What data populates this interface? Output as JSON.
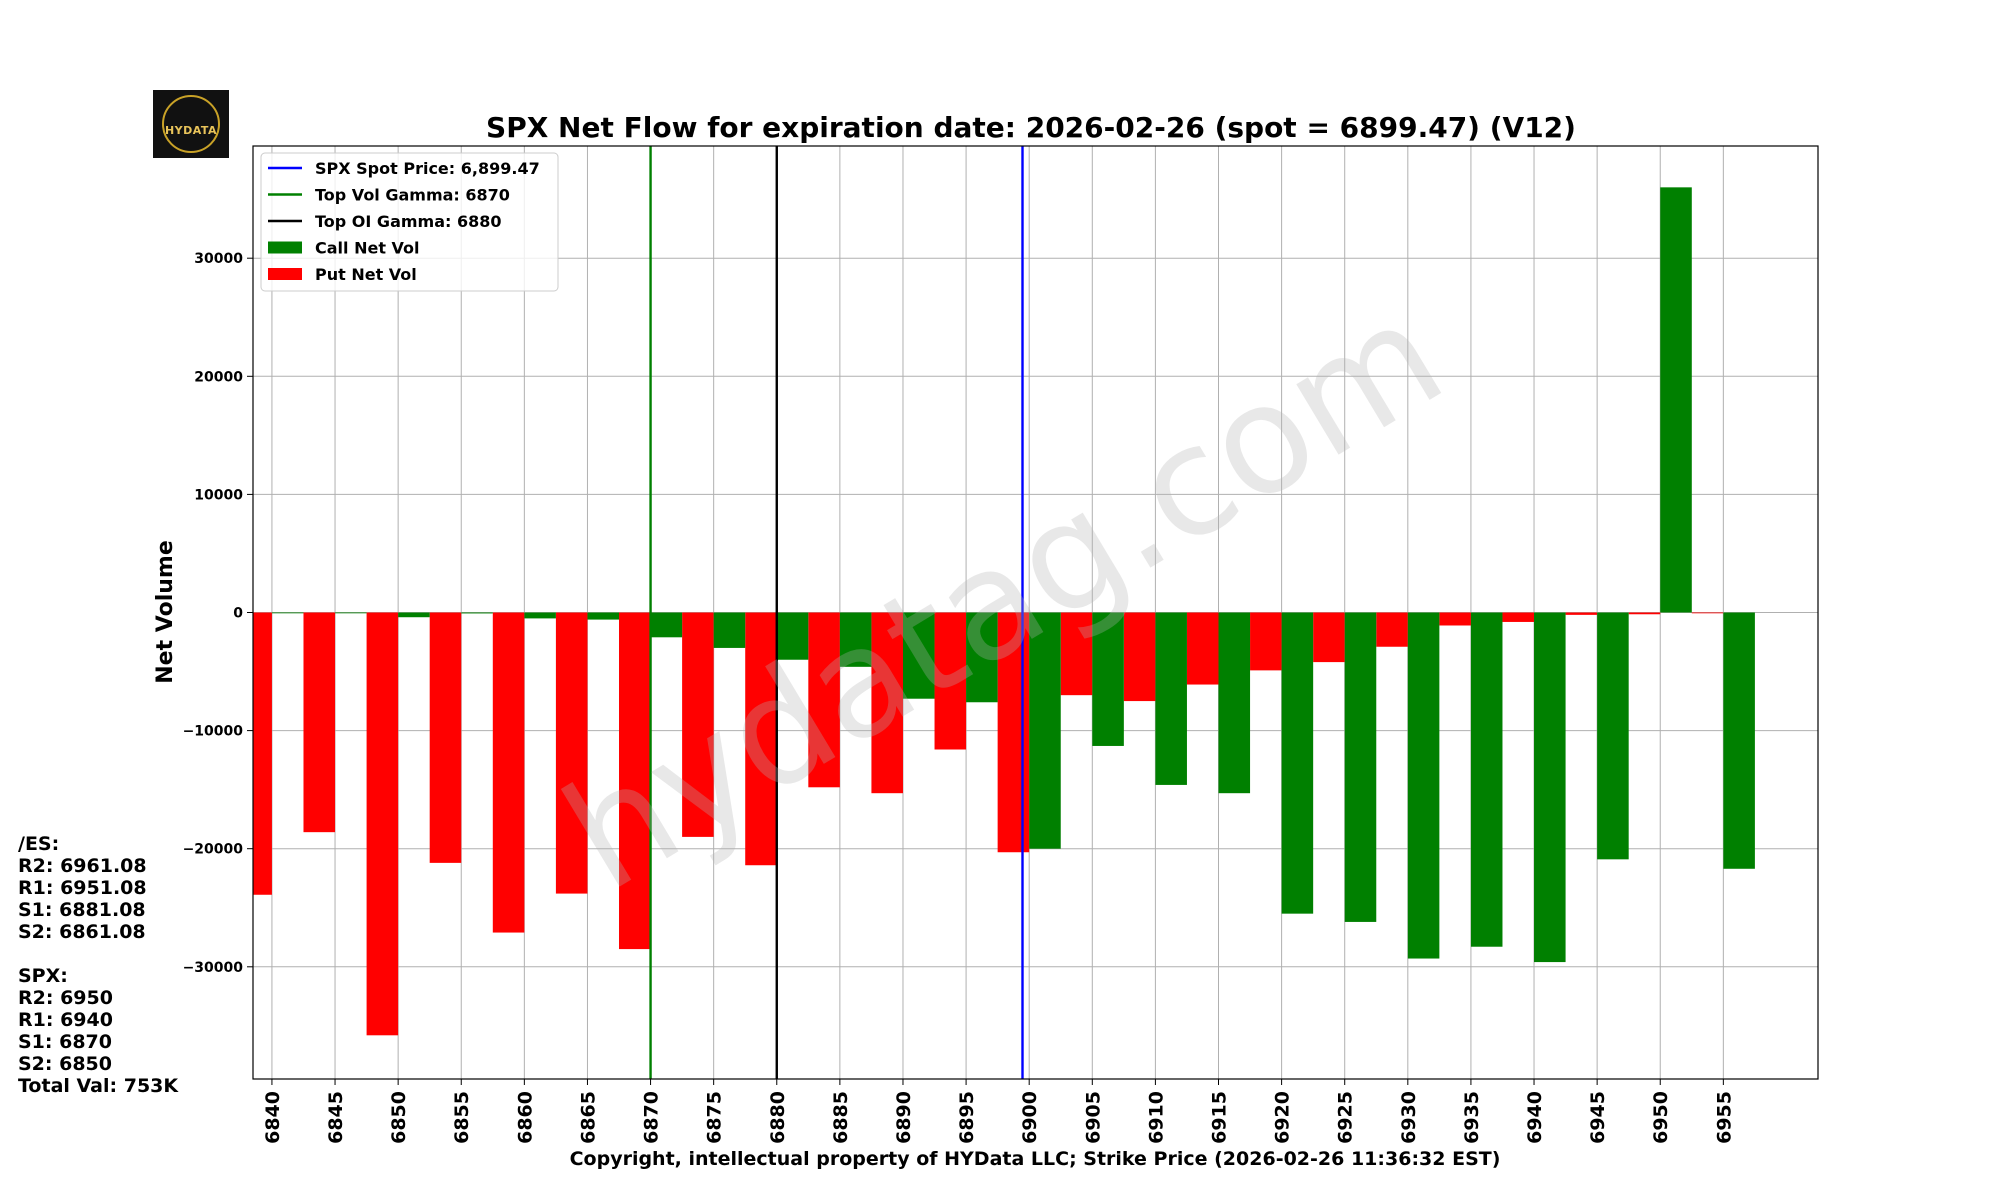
{
  "logo": {
    "text": "HYDATA"
  },
  "chart_data": {
    "type": "bar",
    "title": "SPX Net Flow for expiration date: 2026-02-26 (spot = 6899.47) (V12)",
    "xlabel": "Copyright, intellectual property of HYData LLC; Strike Price (2026-02-26 11:36:32 EST)",
    "ylabel": "Net Volume",
    "watermark": "hydatag.com",
    "xlim": [
      6838.5,
      6962.5
    ],
    "ylim": [
      -39500,
      39500
    ],
    "yticks": [
      -30000,
      -20000,
      -10000,
      0,
      10000,
      20000,
      30000
    ],
    "ytick_labels": [
      "−30000",
      "−20000",
      "−10000",
      "0",
      "10000",
      "20000",
      "30000"
    ],
    "categories": [
      "6840",
      "6845",
      "6850",
      "6855",
      "6860",
      "6865",
      "6870",
      "6875",
      "6880",
      "6885",
      "6890",
      "6895",
      "6900",
      "6905",
      "6910",
      "6915",
      "6920",
      "6925",
      "6930",
      "6935",
      "6940",
      "6945",
      "6950",
      "6955"
    ],
    "grid": true,
    "legend_position": "top-left",
    "series": [
      {
        "name": "Put Net Vol",
        "color": "#ff0000",
        "values": [
          -23900,
          -18600,
          -35800,
          -21200,
          -27100,
          -23800,
          -28500,
          -19000,
          -21400,
          -14800,
          -15300,
          -11600,
          -20300,
          -7000,
          -7500,
          -6100,
          -4900,
          -4200,
          -2900,
          -1100,
          -800,
          -200,
          -150,
          0
        ]
      },
      {
        "name": "Call Net Vol",
        "color": "#008000",
        "values": [
          -50,
          -30,
          -400,
          -80,
          -500,
          -600,
          -2100,
          -3000,
          -4000,
          -4600,
          -7300,
          -7600,
          -20000,
          -11300,
          -14600,
          -15300,
          -25500,
          -26200,
          -29300,
          -28300,
          -29600,
          -20900,
          36000,
          -21700
        ]
      }
    ],
    "reference_lines": [
      {
        "name": "SPX Spot Price: 6,899.47",
        "value": 6899.47,
        "color": "#0000ff"
      },
      {
        "name": "Top Vol Gamma: 6870",
        "value": 6870,
        "color": "#008000"
      },
      {
        "name": "Top OI Gamma: 6880",
        "value": 6880,
        "color": "#000000"
      }
    ],
    "legend": [
      {
        "label": "SPX Spot Price: 6,899.47",
        "kind": "line",
        "color": "#0000ff"
      },
      {
        "label": "Top Vol Gamma: 6870",
        "kind": "line",
        "color": "#008000"
      },
      {
        "label": "Top OI Gamma: 6880",
        "kind": "line",
        "color": "#000000"
      },
      {
        "label": "Call Net Vol",
        "kind": "patch",
        "color": "#008000"
      },
      {
        "label": "Put Net Vol",
        "kind": "patch",
        "color": "#ff0000"
      }
    ]
  },
  "levels": {
    "es_header": "/ES:",
    "es_r2": "R2: 6961.08",
    "es_r1": "R1: 6951.08",
    "es_s1": "S1: 6881.08",
    "es_s2": "S2: 6861.08",
    "spx_header": "SPX:",
    "spx_r2": "R2: 6950",
    "spx_r1": "R1: 6940",
    "spx_s1": "S1: 6870",
    "spx_s2": "S2: 6850",
    "total_val": "Total Val: 753K"
  }
}
